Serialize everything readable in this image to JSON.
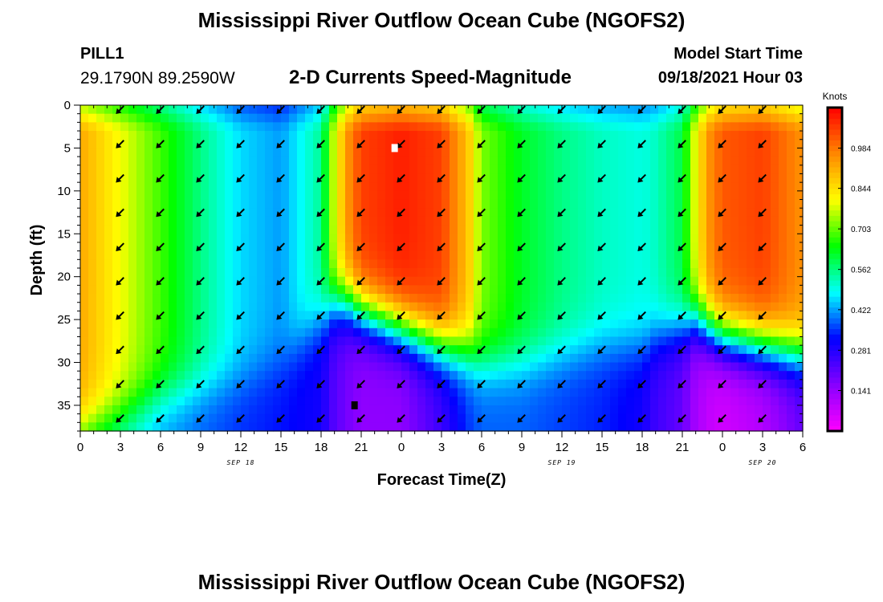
{
  "title": "Mississippi River Outflow Ocean Cube (NGOFS2)",
  "footer_title": "Mississippi River Outflow Ocean Cube (NGOFS2)",
  "station": {
    "name": "PILL1",
    "coords": "29.1790N  89.2590W"
  },
  "model_start": {
    "label": "Model Start Time",
    "value": "09/18/2021 Hour 03"
  },
  "chart_data": {
    "type": "heatmap",
    "title": "2-D Currents Speed-Magnitude",
    "xlabel": "Forecast Time(Z)",
    "ylabel": "Depth (ft)",
    "x_hours": [
      0,
      3,
      6,
      9,
      12,
      15,
      18,
      21,
      24,
      27,
      30,
      33,
      36,
      39,
      42,
      45,
      48,
      51,
      54
    ],
    "x_tick_labels": [
      "0",
      "3",
      "6",
      "9",
      "12",
      "15",
      "18",
      "21",
      "0",
      "3",
      "6",
      "9",
      "12",
      "15",
      "18",
      "21",
      "0",
      "3",
      "6"
    ],
    "x_range_hours": [
      0,
      54
    ],
    "date_labels": [
      {
        "text": "SEP 18",
        "at_hour": 12
      },
      {
        "text": "SEP 19",
        "at_hour": 36
      },
      {
        "text": "SEP 20",
        "at_hour": 51
      }
    ],
    "y_ticks": [
      0,
      5,
      10,
      15,
      20,
      25,
      30,
      35
    ],
    "y_tick_labels": [
      "0",
      "5",
      "10",
      "15",
      "20",
      "25",
      "30",
      "35"
    ],
    "ylim": [
      0,
      38
    ],
    "y_reversed": true,
    "colorbar": {
      "label": "Knots",
      "min": 0,
      "max": 1.125,
      "ticks": [
        0.141,
        0.281,
        0.422,
        0.562,
        0.703,
        0.844,
        0.984
      ],
      "tick_labels": [
        "0.141",
        "0.281",
        "0.422",
        "0.562",
        "0.703",
        "0.844",
        "0.984"
      ],
      "colors": [
        "#ff00ff",
        "#8800ff",
        "#0000ff",
        "#00ffff",
        "#00ff00",
        "#ffff00",
        "#ff8800",
        "#ff0000"
      ]
    },
    "speed_profile": {
      "note_hours": [
        0,
        3,
        6,
        9,
        12,
        15,
        18,
        19,
        20,
        21,
        24,
        27,
        29,
        30,
        33,
        36,
        39,
        42,
        43,
        45,
        46,
        47,
        48,
        51,
        54
      ],
      "upper": [
        0.92,
        0.8,
        0.68,
        0.56,
        0.46,
        0.42,
        0.55,
        0.78,
        0.95,
        1.05,
        1.09,
        1.05,
        0.88,
        0.72,
        0.62,
        0.56,
        0.52,
        0.5,
        0.52,
        0.6,
        0.8,
        0.95,
        1.02,
        1.05,
        0.95
      ],
      "bottom": [
        0.55,
        0.5,
        0.42,
        0.38,
        0.35,
        0.33,
        0.3,
        0.22,
        0.18,
        0.15,
        0.15,
        0.25,
        0.35,
        0.38,
        0.38,
        0.36,
        0.34,
        0.3,
        0.25,
        0.2,
        0.12,
        0.08,
        0.06,
        0.1,
        0.2
      ],
      "layer_depth": [
        38,
        36,
        34,
        33,
        32,
        30,
        25,
        23,
        23,
        24,
        26,
        28,
        29,
        30,
        30,
        29,
        28,
        28,
        27,
        26,
        25,
        26,
        27,
        28,
        29
      ]
    },
    "markers": [
      {
        "type": "max",
        "color": "#ffffff",
        "hour": 23.5,
        "depth": 5
      },
      {
        "type": "min",
        "color": "#000000",
        "hour": 20.5,
        "depth": 35
      }
    ]
  }
}
